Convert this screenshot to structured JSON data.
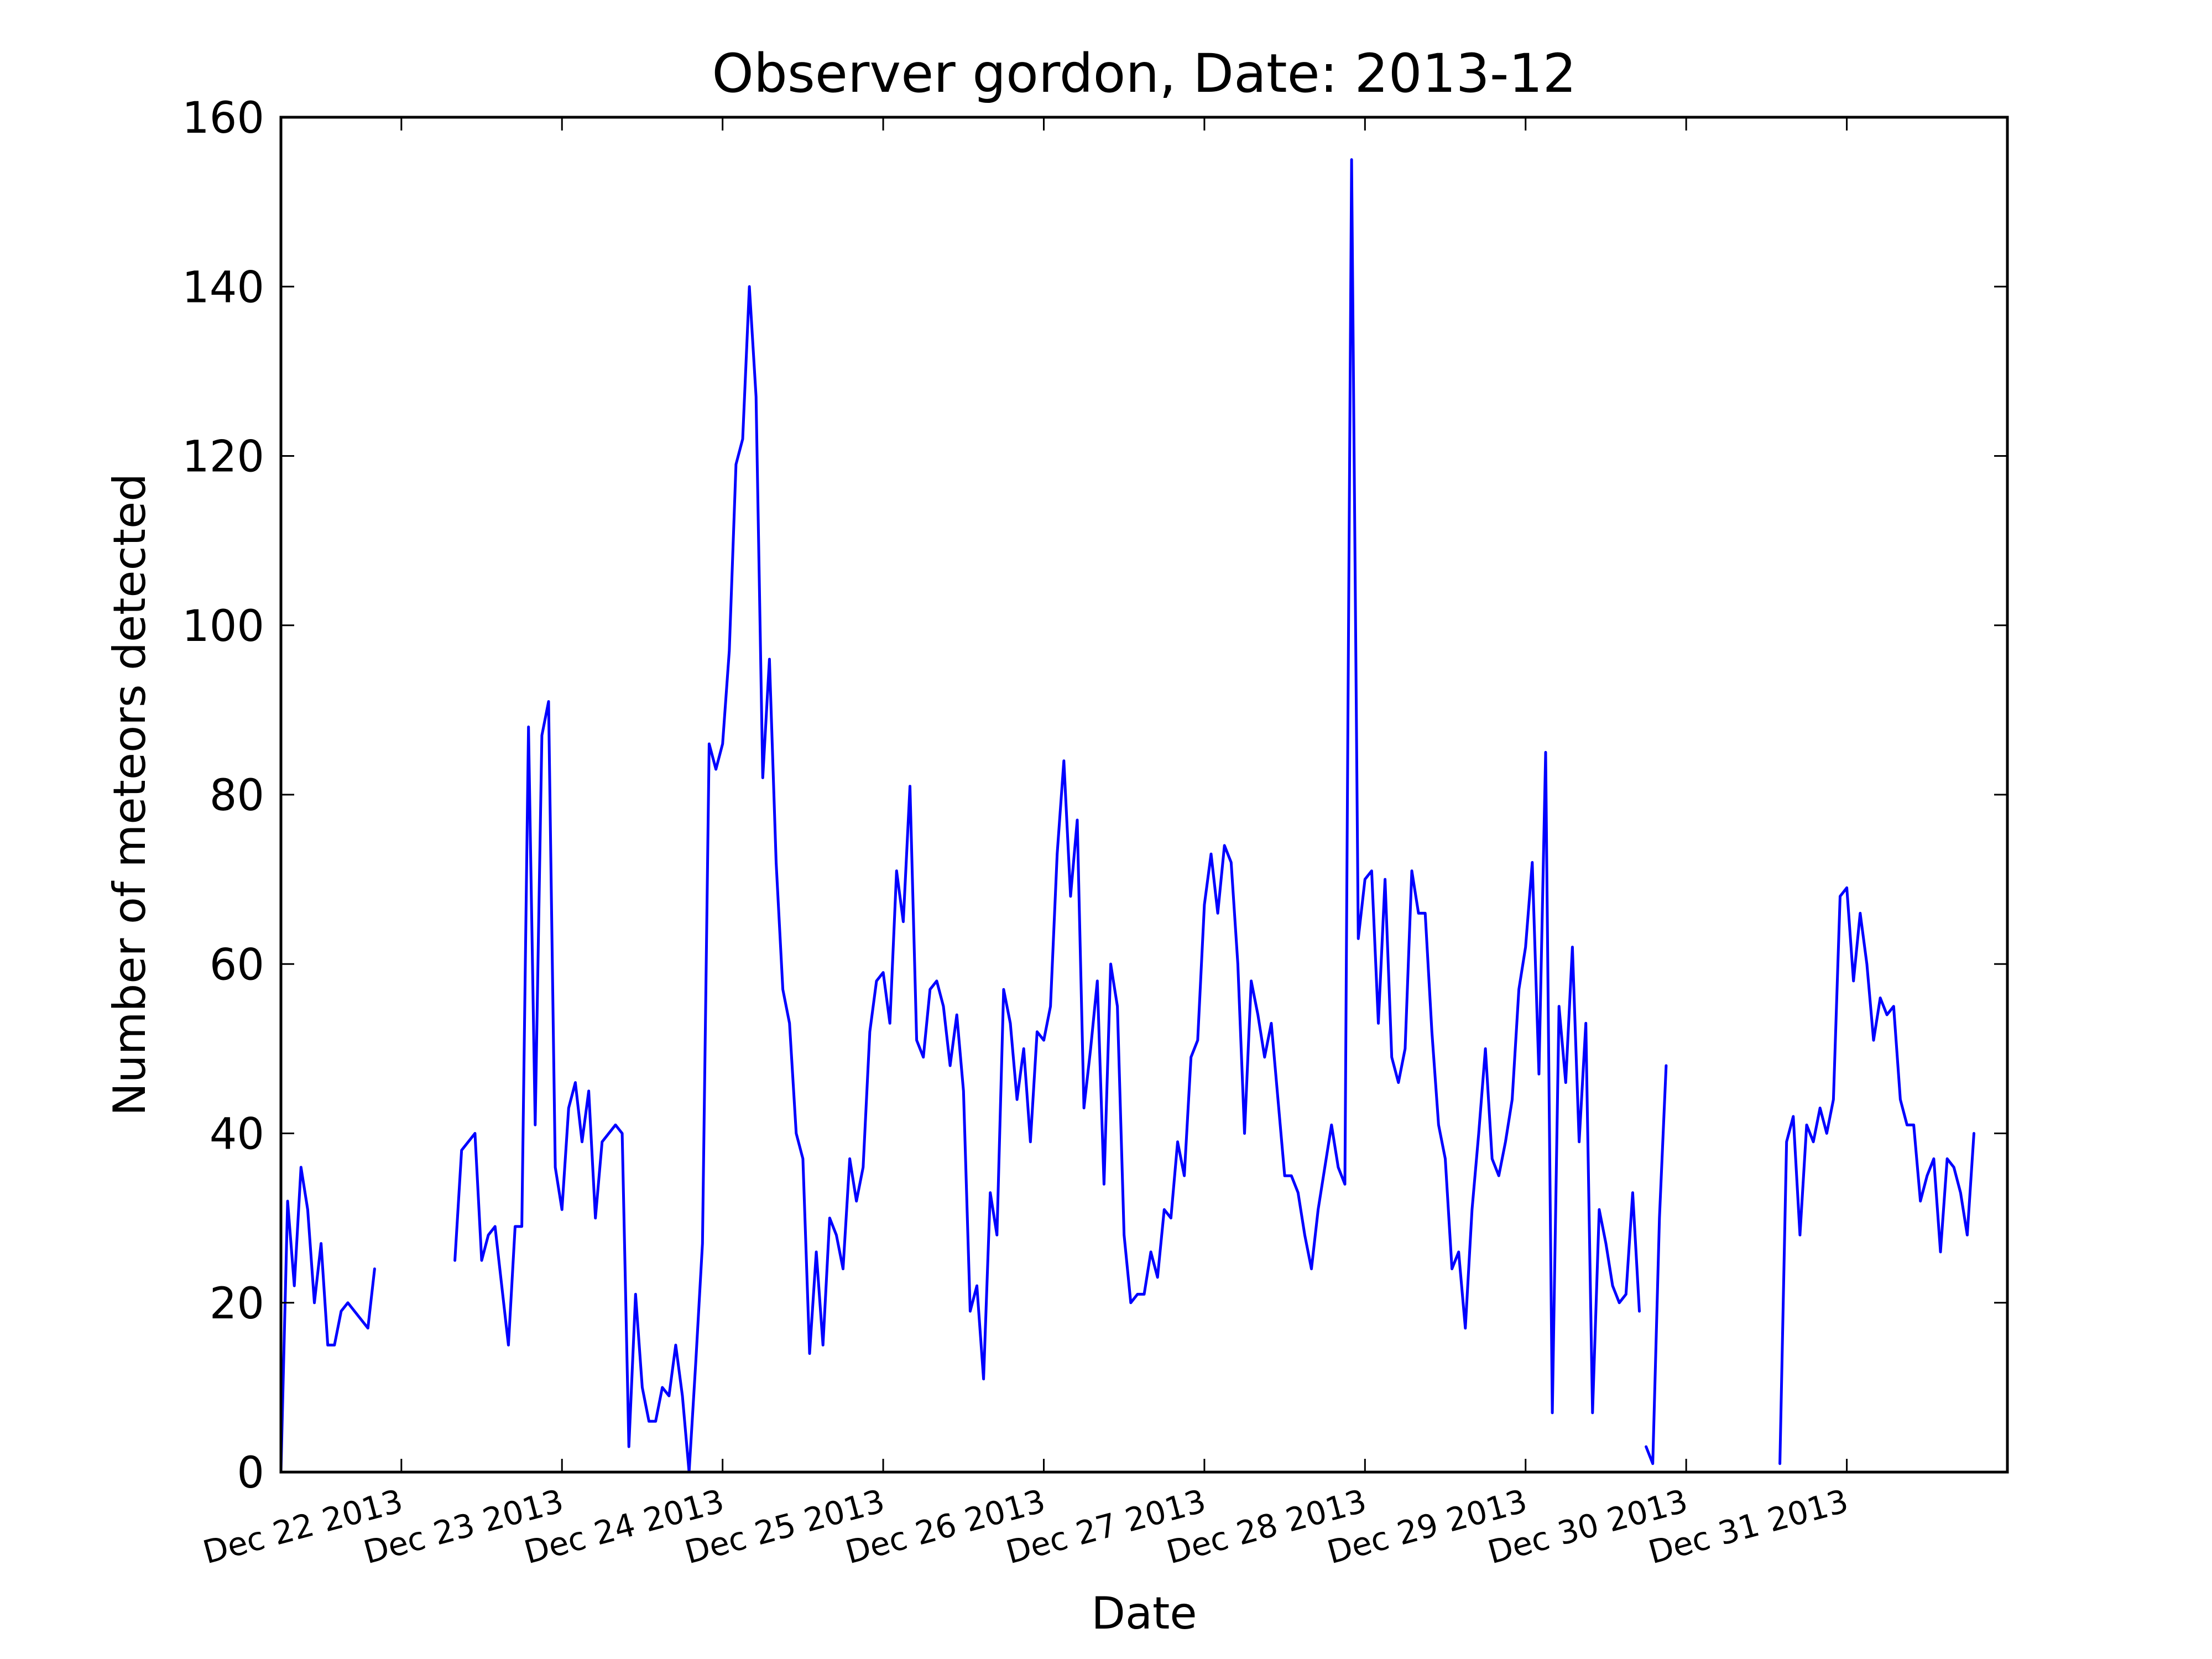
{
  "chart_data": {
    "type": "line",
    "title": "Observer gordon, Date: 2013-12",
    "xlabel": "Date",
    "ylabel": "Number of meteors detected",
    "ylim": [
      0,
      160
    ],
    "yticks": [
      0,
      20,
      40,
      60,
      80,
      100,
      120,
      140,
      160
    ],
    "xlim": [
      "2013-12-21T06:00",
      "2014-01-01T00:00"
    ],
    "xticks": [
      {
        "label": "Dec 22 2013",
        "date": "2013-12-22T00:00"
      },
      {
        "label": "Dec 23 2013",
        "date": "2013-12-23T00:00"
      },
      {
        "label": "Dec 24 2013",
        "date": "2013-12-24T00:00"
      },
      {
        "label": "Dec 25 2013",
        "date": "2013-12-25T00:00"
      },
      {
        "label": "Dec 26 2013",
        "date": "2013-12-26T00:00"
      },
      {
        "label": "Dec 27 2013",
        "date": "2013-12-27T00:00"
      },
      {
        "label": "Dec 28 2013",
        "date": "2013-12-28T00:00"
      },
      {
        "label": "Dec 29 2013",
        "date": "2013-12-29T00:00"
      },
      {
        "label": "Dec 30 2013",
        "date": "2013-12-30T00:00"
      },
      {
        "label": "Dec 31 2013",
        "date": "2013-12-31T00:00"
      }
    ],
    "grid": false,
    "line_color": "#0000ff",
    "series": [
      {
        "segments": [
          [
            [
              "2013-12-21T06:00",
              0
            ],
            [
              "2013-12-21T07:00",
              32
            ],
            [
              "2013-12-21T08:00",
              22
            ],
            [
              "2013-12-21T09:00",
              36
            ],
            [
              "2013-12-21T10:00",
              31
            ],
            [
              "2013-12-21T11:00",
              20
            ],
            [
              "2013-12-21T12:00",
              27
            ],
            [
              "2013-12-21T13:00",
              15
            ],
            [
              "2013-12-21T14:00",
              15
            ],
            [
              "2013-12-21T15:00",
              19
            ],
            [
              "2013-12-21T16:00",
              20
            ],
            [
              "2013-12-21T19:00",
              17
            ],
            [
              "2013-12-21T20:00",
              24
            ]
          ],
          [
            [
              "2013-12-22T08:00",
              25
            ],
            [
              "2013-12-22T09:00",
              38
            ],
            [
              "2013-12-22T11:00",
              40
            ],
            [
              "2013-12-22T12:00",
              25
            ],
            [
              "2013-12-22T13:00",
              28
            ],
            [
              "2013-12-22T14:00",
              29
            ],
            [
              "2013-12-22T16:00",
              15
            ],
            [
              "2013-12-22T17:00",
              29
            ],
            [
              "2013-12-22T18:00",
              29
            ],
            [
              "2013-12-22T19:00",
              88
            ],
            [
              "2013-12-22T20:00",
              41
            ],
            [
              "2013-12-22T21:00",
              87
            ],
            [
              "2013-12-22T22:00",
              91
            ],
            [
              "2013-12-22T23:00",
              36
            ],
            [
              "2013-12-23T00:00",
              31
            ],
            [
              "2013-12-23T01:00",
              43
            ],
            [
              "2013-12-23T02:00",
              46
            ],
            [
              "2013-12-23T03:00",
              39
            ],
            [
              "2013-12-23T04:00",
              45
            ],
            [
              "2013-12-23T05:00",
              30
            ],
            [
              "2013-12-23T06:00",
              39
            ],
            [
              "2013-12-23T08:00",
              41
            ],
            [
              "2013-12-23T09:00",
              40
            ],
            [
              "2013-12-23T10:00",
              3
            ],
            [
              "2013-12-23T11:00",
              21
            ],
            [
              "2013-12-23T12:00",
              10
            ],
            [
              "2013-12-23T13:00",
              6
            ],
            [
              "2013-12-23T14:00",
              6
            ],
            [
              "2013-12-23T15:00",
              10
            ],
            [
              "2013-12-23T16:00",
              9
            ],
            [
              "2013-12-23T17:00",
              15
            ],
            [
              "2013-12-23T18:00",
              9
            ],
            [
              "2013-12-23T19:00",
              0
            ],
            [
              "2013-12-23T20:00",
              13
            ],
            [
              "2013-12-23T21:00",
              27
            ],
            [
              "2013-12-23T22:00",
              86
            ],
            [
              "2013-12-23T23:00",
              83
            ],
            [
              "2013-12-24T00:00",
              86
            ],
            [
              "2013-12-24T01:00",
              97
            ],
            [
              "2013-12-24T02:00",
              119
            ],
            [
              "2013-12-24T03:00",
              122
            ],
            [
              "2013-12-24T04:00",
              140
            ],
            [
              "2013-12-24T05:00",
              127
            ],
            [
              "2013-12-24T06:00",
              82
            ],
            [
              "2013-12-24T07:00",
              96
            ],
            [
              "2013-12-24T08:00",
              72
            ],
            [
              "2013-12-24T09:00",
              57
            ],
            [
              "2013-12-24T10:00",
              53
            ],
            [
              "2013-12-24T11:00",
              40
            ],
            [
              "2013-12-24T12:00",
              37
            ],
            [
              "2013-12-24T13:00",
              14
            ],
            [
              "2013-12-24T14:00",
              26
            ],
            [
              "2013-12-24T15:00",
              15
            ],
            [
              "2013-12-24T16:00",
              30
            ],
            [
              "2013-12-24T17:00",
              28
            ],
            [
              "2013-12-24T18:00",
              24
            ],
            [
              "2013-12-24T19:00",
              37
            ],
            [
              "2013-12-24T20:00",
              32
            ],
            [
              "2013-12-24T21:00",
              36
            ],
            [
              "2013-12-24T22:00",
              52
            ],
            [
              "2013-12-24T23:00",
              58
            ],
            [
              "2013-12-25T00:00",
              59
            ],
            [
              "2013-12-25T01:00",
              53
            ],
            [
              "2013-12-25T02:00",
              71
            ],
            [
              "2013-12-25T03:00",
              65
            ],
            [
              "2013-12-25T04:00",
              81
            ],
            [
              "2013-12-25T05:00",
              51
            ],
            [
              "2013-12-25T06:00",
              49
            ],
            [
              "2013-12-25T07:00",
              57
            ],
            [
              "2013-12-25T08:00",
              58
            ],
            [
              "2013-12-25T09:00",
              55
            ],
            [
              "2013-12-25T10:00",
              48
            ],
            [
              "2013-12-25T11:00",
              54
            ],
            [
              "2013-12-25T12:00",
              45
            ],
            [
              "2013-12-25T13:00",
              19
            ],
            [
              "2013-12-25T14:00",
              22
            ],
            [
              "2013-12-25T15:00",
              11
            ],
            [
              "2013-12-25T16:00",
              33
            ],
            [
              "2013-12-25T17:00",
              28
            ],
            [
              "2013-12-25T18:00",
              57
            ],
            [
              "2013-12-25T19:00",
              53
            ],
            [
              "2013-12-25T20:00",
              44
            ],
            [
              "2013-12-25T21:00",
              50
            ],
            [
              "2013-12-25T22:00",
              39
            ],
            [
              "2013-12-25T23:00",
              52
            ],
            [
              "2013-12-26T00:00",
              51
            ],
            [
              "2013-12-26T01:00",
              55
            ],
            [
              "2013-12-26T02:00",
              73
            ],
            [
              "2013-12-26T03:00",
              84
            ],
            [
              "2013-12-26T04:00",
              68
            ],
            [
              "2013-12-26T05:00",
              77
            ],
            [
              "2013-12-26T06:00",
              43
            ],
            [
              "2013-12-26T07:00",
              50
            ],
            [
              "2013-12-26T08:00",
              58
            ],
            [
              "2013-12-26T09:00",
              34
            ],
            [
              "2013-12-26T10:00",
              60
            ],
            [
              "2013-12-26T11:00",
              55
            ],
            [
              "2013-12-26T12:00",
              28
            ],
            [
              "2013-12-26T13:00",
              20
            ],
            [
              "2013-12-26T14:00",
              21
            ],
            [
              "2013-12-26T15:00",
              21
            ],
            [
              "2013-12-26T16:00",
              26
            ],
            [
              "2013-12-26T17:00",
              23
            ],
            [
              "2013-12-26T18:00",
              31
            ],
            [
              "2013-12-26T19:00",
              30
            ],
            [
              "2013-12-26T20:00",
              39
            ],
            [
              "2013-12-26T21:00",
              35
            ],
            [
              "2013-12-26T22:00",
              49
            ],
            [
              "2013-12-26T23:00",
              51
            ],
            [
              "2013-12-27T00:00",
              67
            ],
            [
              "2013-12-27T01:00",
              73
            ],
            [
              "2013-12-27T02:00",
              66
            ],
            [
              "2013-12-27T03:00",
              74
            ],
            [
              "2013-12-27T04:00",
              72
            ],
            [
              "2013-12-27T05:00",
              60
            ],
            [
              "2013-12-27T06:00",
              40
            ],
            [
              "2013-12-27T07:00",
              58
            ],
            [
              "2013-12-27T08:00",
              54
            ],
            [
              "2013-12-27T09:00",
              49
            ],
            [
              "2013-12-27T10:00",
              53
            ],
            [
              "2013-12-27T11:00",
              44
            ],
            [
              "2013-12-27T12:00",
              35
            ],
            [
              "2013-12-27T13:00",
              35
            ],
            [
              "2013-12-27T14:00",
              33
            ],
            [
              "2013-12-27T15:00",
              28
            ],
            [
              "2013-12-27T16:00",
              24
            ],
            [
              "2013-12-27T17:00",
              31
            ],
            [
              "2013-12-27T18:00",
              36
            ],
            [
              "2013-12-27T19:00",
              41
            ],
            [
              "2013-12-27T20:00",
              36
            ],
            [
              "2013-12-27T21:00",
              34
            ],
            [
              "2013-12-27T22:00",
              155
            ],
            [
              "2013-12-27T23:00",
              63
            ],
            [
              "2013-12-28T00:00",
              70
            ],
            [
              "2013-12-28T01:00",
              71
            ],
            [
              "2013-12-28T02:00",
              53
            ],
            [
              "2013-12-28T03:00",
              70
            ],
            [
              "2013-12-28T04:00",
              49
            ],
            [
              "2013-12-28T05:00",
              46
            ],
            [
              "2013-12-28T06:00",
              50
            ],
            [
              "2013-12-28T07:00",
              71
            ],
            [
              "2013-12-28T08:00",
              66
            ],
            [
              "2013-12-28T09:00",
              66
            ],
            [
              "2013-12-28T10:00",
              52
            ],
            [
              "2013-12-28T11:00",
              41
            ],
            [
              "2013-12-28T12:00",
              37
            ],
            [
              "2013-12-28T13:00",
              24
            ],
            [
              "2013-12-28T14:00",
              26
            ],
            [
              "2013-12-28T15:00",
              17
            ],
            [
              "2013-12-28T16:00",
              31
            ],
            [
              "2013-12-28T17:00",
              40
            ],
            [
              "2013-12-28T18:00",
              50
            ],
            [
              "2013-12-28T19:00",
              37
            ],
            [
              "2013-12-28T20:00",
              35
            ],
            [
              "2013-12-28T21:00",
              39
            ],
            [
              "2013-12-28T22:00",
              44
            ],
            [
              "2013-12-28T23:00",
              57
            ],
            [
              "2013-12-29T00:00",
              62
            ],
            [
              "2013-12-29T01:00",
              72
            ],
            [
              "2013-12-29T02:00",
              47
            ],
            [
              "2013-12-29T03:00",
              85
            ],
            [
              "2013-12-29T04:00",
              7
            ],
            [
              "2013-12-29T05:00",
              55
            ],
            [
              "2013-12-29T06:00",
              46
            ],
            [
              "2013-12-29T07:00",
              62
            ],
            [
              "2013-12-29T08:00",
              39
            ],
            [
              "2013-12-29T09:00",
              53
            ],
            [
              "2013-12-29T10:00",
              7
            ],
            [
              "2013-12-29T11:00",
              31
            ],
            [
              "2013-12-29T12:00",
              27
            ],
            [
              "2013-12-29T13:00",
              22
            ],
            [
              "2013-12-29T14:00",
              20
            ],
            [
              "2013-12-29T15:00",
              21
            ],
            [
              "2013-12-29T16:00",
              33
            ],
            [
              "2013-12-29T17:00",
              19
            ]
          ],
          [
            [
              "2013-12-29T18:00",
              3
            ],
            [
              "2013-12-29T19:00",
              1
            ],
            [
              "2013-12-29T20:00",
              30
            ],
            [
              "2013-12-29T21:00",
              48
            ]
          ],
          [
            [
              "2013-12-30T14:00",
              1
            ],
            [
              "2013-12-30T15:00",
              39
            ],
            [
              "2013-12-30T16:00",
              42
            ],
            [
              "2013-12-30T17:00",
              28
            ],
            [
              "2013-12-30T18:00",
              41
            ],
            [
              "2013-12-30T19:00",
              39
            ],
            [
              "2013-12-30T20:00",
              43
            ],
            [
              "2013-12-30T21:00",
              40
            ],
            [
              "2013-12-30T22:00",
              44
            ],
            [
              "2013-12-30T23:00",
              68
            ],
            [
              "2013-12-31T00:00",
              69
            ],
            [
              "2013-12-31T01:00",
              58
            ],
            [
              "2013-12-31T02:00",
              66
            ],
            [
              "2013-12-31T03:00",
              60
            ],
            [
              "2013-12-31T04:00",
              51
            ],
            [
              "2013-12-31T05:00",
              56
            ],
            [
              "2013-12-31T06:00",
              54
            ],
            [
              "2013-12-31T07:00",
              55
            ],
            [
              "2013-12-31T08:00",
              44
            ],
            [
              "2013-12-31T09:00",
              41
            ],
            [
              "2013-12-31T10:00",
              41
            ],
            [
              "2013-12-31T11:00",
              32
            ],
            [
              "2013-12-31T12:00",
              35
            ],
            [
              "2013-12-31T13:00",
              37
            ],
            [
              "2013-12-31T14:00",
              26
            ],
            [
              "2013-12-31T15:00",
              37
            ],
            [
              "2013-12-31T16:00",
              36
            ],
            [
              "2013-12-31T17:00",
              33
            ],
            [
              "2013-12-31T18:00",
              28
            ],
            [
              "2013-12-31T19:00",
              40
            ]
          ]
        ]
      }
    ]
  }
}
